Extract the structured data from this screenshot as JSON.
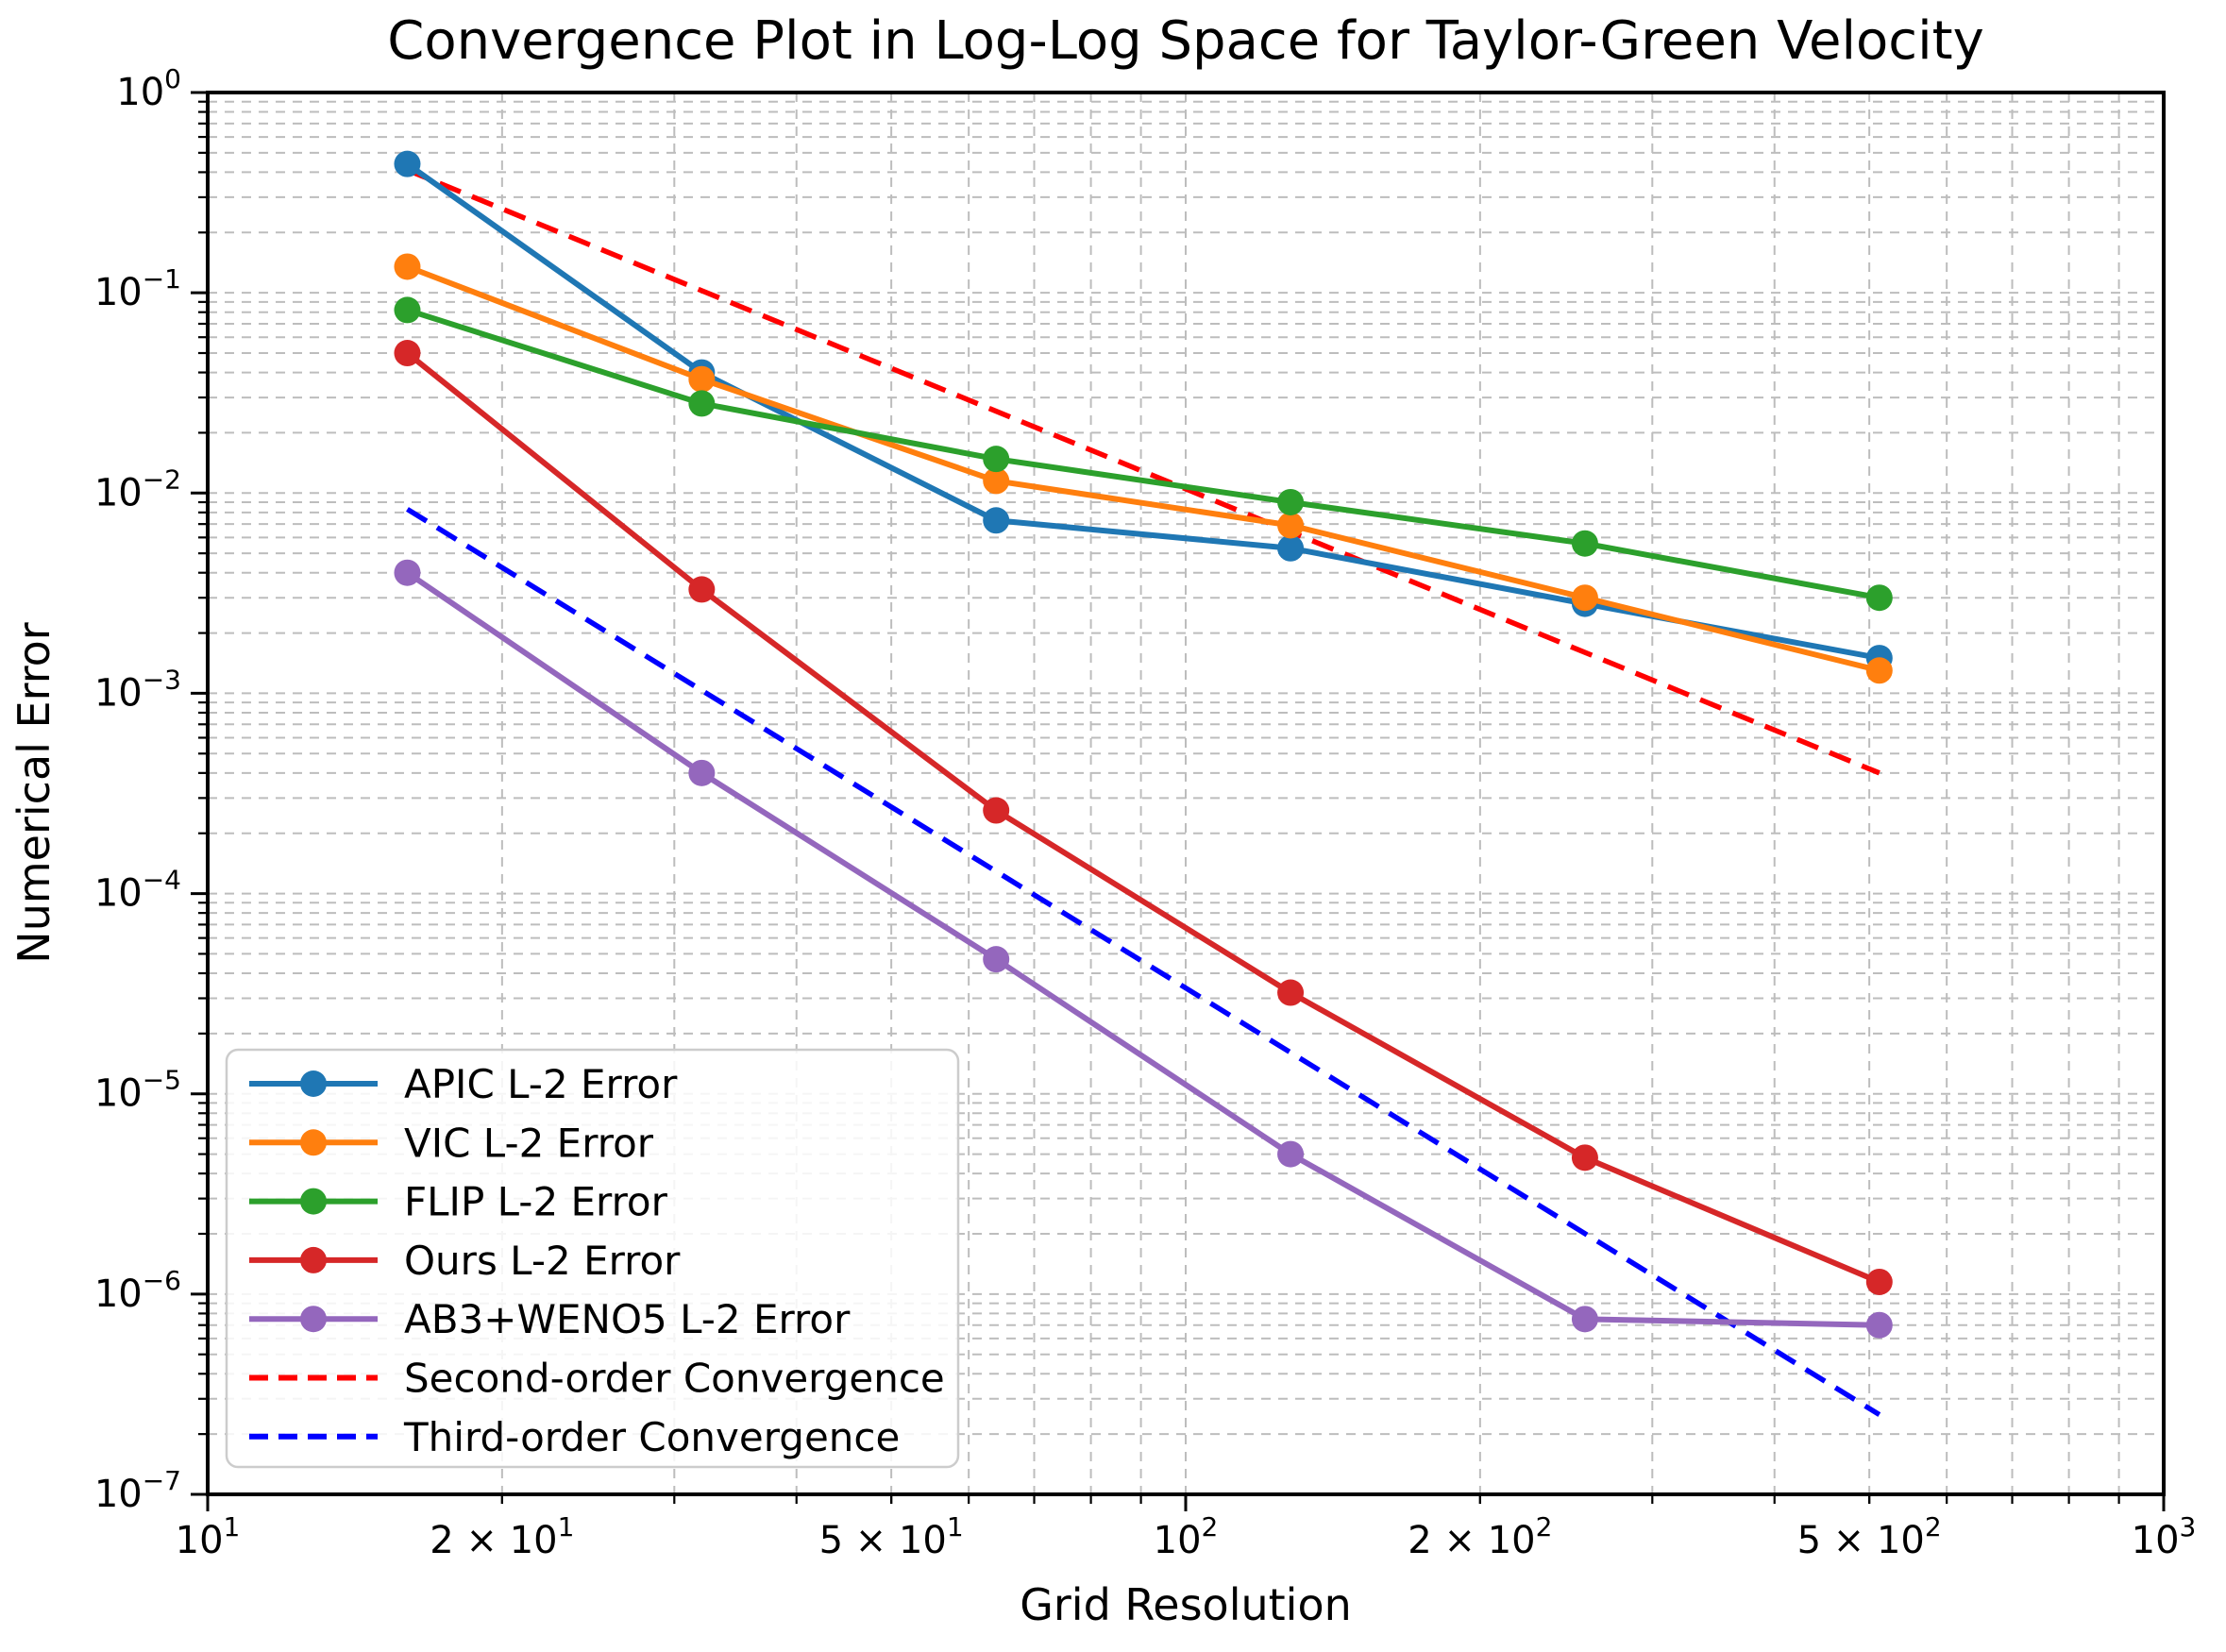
{
  "figure": {
    "title": "Convergence Plot in Log-Log Space for Taylor-Green Velocity",
    "xlabel": "Grid Resolution",
    "ylabel": "Numerical Error"
  },
  "chart_data": {
    "type": "line",
    "log_x": true,
    "log_y": true,
    "xlim": [
      10,
      1000
    ],
    "ylim": [
      1e-07,
      1
    ],
    "grid": "both",
    "legend_position": "lower left",
    "x": [
      16,
      32,
      64,
      128,
      256,
      512
    ],
    "series": [
      {
        "name": "APIC L-2 Error",
        "color": "#1f77b4",
        "marker": "circle",
        "values": [
          0.44,
          0.04,
          0.0073,
          0.0053,
          0.0028,
          0.0015
        ]
      },
      {
        "name": "VIC L-2 Error",
        "color": "#ff7f0e",
        "marker": "circle",
        "values": [
          0.135,
          0.037,
          0.0115,
          0.0069,
          0.003,
          0.0013
        ]
      },
      {
        "name": "FLIP L-2 Error",
        "color": "#2ca02c",
        "marker": "circle",
        "values": [
          0.082,
          0.028,
          0.0148,
          0.009,
          0.0056,
          0.003
        ]
      },
      {
        "name": "Ours L-2 Error",
        "color": "#d62728",
        "marker": "circle",
        "values": [
          0.05,
          0.0033,
          0.00026,
          3.2e-05,
          4.8e-06,
          1.15e-06
        ]
      },
      {
        "name": "AB3+WENO5 L-2 Error",
        "color": "#9467bd",
        "marker": "circle",
        "values": [
          0.004,
          0.0004,
          4.7e-05,
          5e-06,
          7.5e-07,
          7e-07
        ]
      }
    ],
    "reference_lines": [
      {
        "name": "Second-order Convergence",
        "color": "#ff0000",
        "style": "dashed",
        "x": [
          16,
          512
        ],
        "y": [
          0.41,
          0.0004
        ]
      },
      {
        "name": "Third-order Convergence",
        "color": "#0000ff",
        "style": "dashed",
        "x": [
          16,
          512
        ],
        "y": [
          0.0083,
          2.5e-07
        ]
      }
    ],
    "x_ticks": [
      {
        "value": 10,
        "prefix": "",
        "exp": "1"
      },
      {
        "value": 20,
        "prefix": "2 × ",
        "exp": "1"
      },
      {
        "value": 50,
        "prefix": "5 × ",
        "exp": "1"
      },
      {
        "value": 100,
        "prefix": "",
        "exp": "2"
      },
      {
        "value": 200,
        "prefix": "2 × ",
        "exp": "2"
      },
      {
        "value": 500,
        "prefix": "5 × ",
        "exp": "2"
      },
      {
        "value": 1000,
        "prefix": "",
        "exp": "3"
      }
    ],
    "y_ticks": [
      {
        "value": 1,
        "exp": "0"
      },
      {
        "value": 0.1,
        "exp": "−1"
      },
      {
        "value": 0.01,
        "exp": "−2"
      },
      {
        "value": 0.001,
        "exp": "−3"
      },
      {
        "value": 0.0001,
        "exp": "−4"
      },
      {
        "value": 1e-05,
        "exp": "−5"
      },
      {
        "value": 1e-06,
        "exp": "−6"
      },
      {
        "value": 1e-07,
        "exp": "−7"
      }
    ]
  }
}
